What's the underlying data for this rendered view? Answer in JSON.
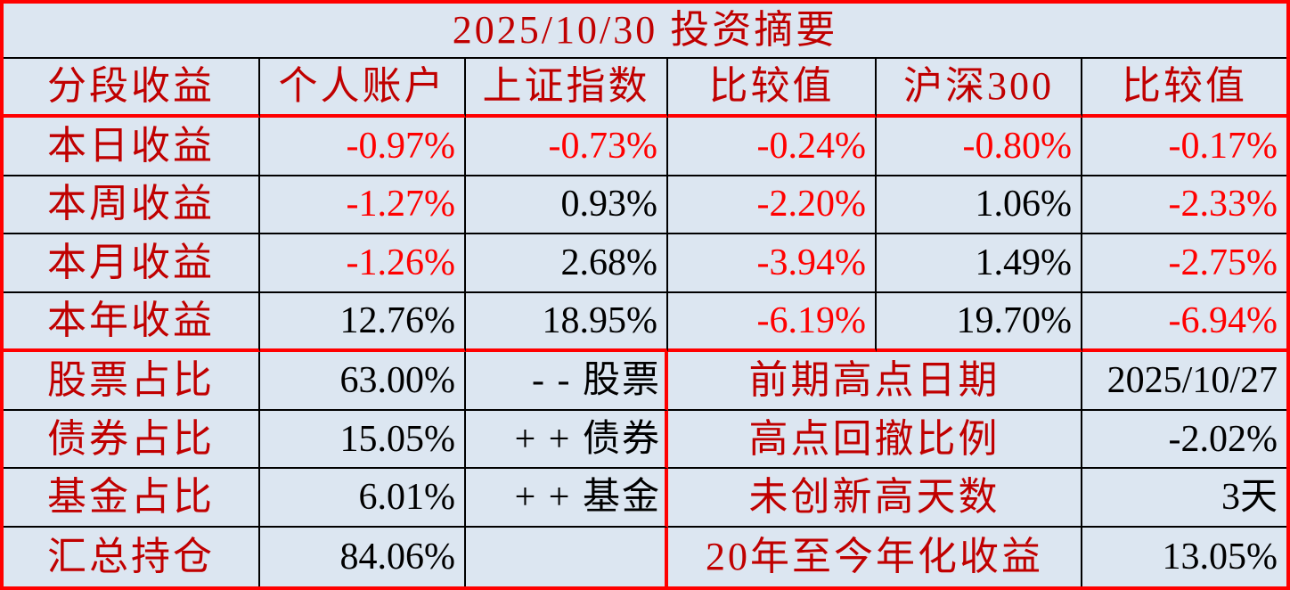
{
  "title": "2025/10/30 投资摘要",
  "colors": {
    "background": "#DCE6F1",
    "label_red": "#C00000",
    "negative_red": "#FF0000",
    "value_black": "#000000",
    "border_red": "#FF0000",
    "border_black": "#000000"
  },
  "header": [
    "分段收益",
    "个人账户",
    "上证指数",
    "比较值",
    "沪深300",
    "比较值"
  ],
  "performance": [
    {
      "label": "本日收益",
      "values": [
        {
          "text": "-0.97%",
          "cls": "neg"
        },
        {
          "text": "-0.73%",
          "cls": "neg"
        },
        {
          "text": "-0.24%",
          "cls": "neg"
        },
        {
          "text": "-0.80%",
          "cls": "neg"
        },
        {
          "text": "-0.17%",
          "cls": "neg"
        }
      ]
    },
    {
      "label": "本周收益",
      "values": [
        {
          "text": "-1.27%",
          "cls": "neg"
        },
        {
          "text": "0.93%",
          "cls": "pos"
        },
        {
          "text": "-2.20%",
          "cls": "neg"
        },
        {
          "text": "1.06%",
          "cls": "pos"
        },
        {
          "text": "-2.33%",
          "cls": "neg"
        }
      ]
    },
    {
      "label": "本月收益",
      "values": [
        {
          "text": "-1.26%",
          "cls": "neg"
        },
        {
          "text": "2.68%",
          "cls": "pos"
        },
        {
          "text": "-3.94%",
          "cls": "neg"
        },
        {
          "text": "1.49%",
          "cls": "pos"
        },
        {
          "text": "-2.75%",
          "cls": "neg"
        }
      ]
    },
    {
      "label": "本年收益",
      "values": [
        {
          "text": "12.76%",
          "cls": "pos"
        },
        {
          "text": "18.95%",
          "cls": "pos"
        },
        {
          "text": "-6.19%",
          "cls": "neg"
        },
        {
          "text": "19.70%",
          "cls": "pos"
        },
        {
          "text": "-6.94%",
          "cls": "neg"
        }
      ]
    }
  ],
  "allocation": [
    {
      "label": "股票占比",
      "value": "63.00%",
      "indicator": "- - 股票"
    },
    {
      "label": "债券占比",
      "value": "15.05%",
      "indicator": "+ + 债券"
    },
    {
      "label": "基金占比",
      "value": "6.01%",
      "indicator": "+ + 基金"
    },
    {
      "label": "汇总持仓",
      "value": "84.06%",
      "indicator": ""
    }
  ],
  "stats": [
    {
      "label": "前期高点日期",
      "value": "2025/10/27"
    },
    {
      "label": "高点回撤比例",
      "value": "-2.02%"
    },
    {
      "label": "未创新高天数",
      "value": "3天"
    },
    {
      "label": "20年至今年化收益",
      "value": "13.05%"
    }
  ]
}
